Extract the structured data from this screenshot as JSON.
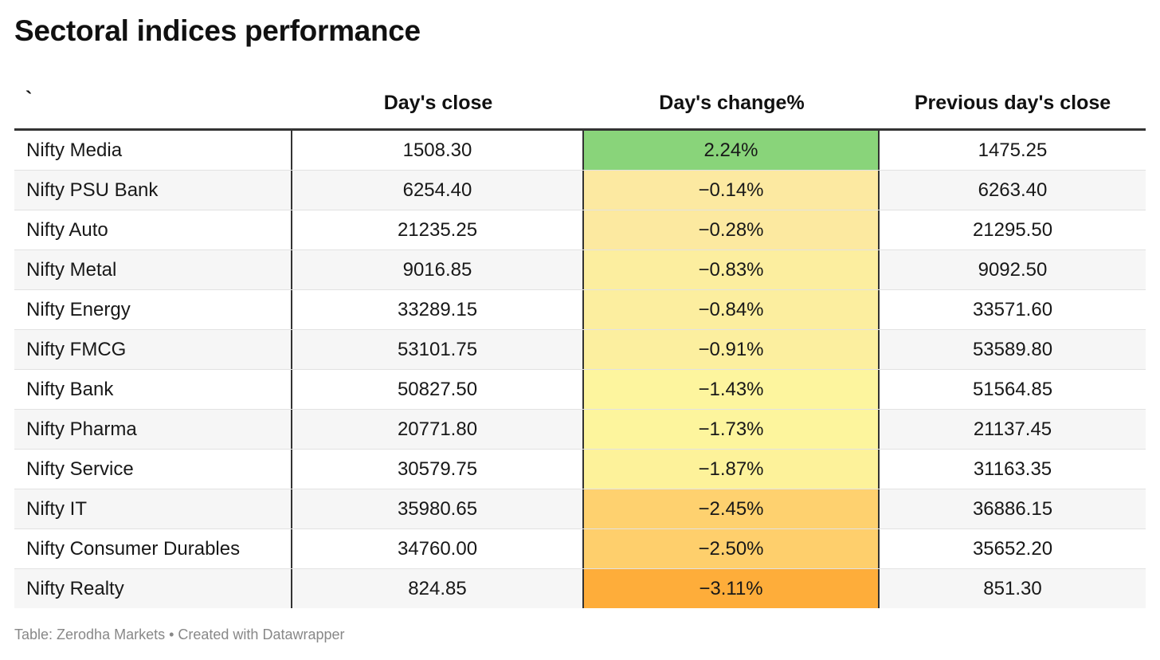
{
  "title": "Sectoral indices performance",
  "table": {
    "headers": [
      "`",
      "Day's close",
      "Day's change%",
      "Previous day's close"
    ],
    "rows": [
      {
        "name": "Nifty Media",
        "close": "1508.30",
        "change": "2.24%",
        "prev": "1475.25",
        "change_color": "#89d47a"
      },
      {
        "name": "Nifty PSU Bank",
        "close": "6254.40",
        "change": "−0.14%",
        "prev": "6263.40",
        "change_color": "#fce9a1"
      },
      {
        "name": "Nifty Auto",
        "close": "21235.25",
        "change": "−0.28%",
        "prev": "21295.50",
        "change_color": "#fce9a0"
      },
      {
        "name": "Nifty Metal",
        "close": "9016.85",
        "change": "−0.83%",
        "prev": "9092.50",
        "change_color": "#fcee9f"
      },
      {
        "name": "Nifty Energy",
        "close": "33289.15",
        "change": "−0.84%",
        "prev": "33571.60",
        "change_color": "#fcee9f"
      },
      {
        "name": "Nifty FMCG",
        "close": "53101.75",
        "change": "−0.91%",
        "prev": "53589.80",
        "change_color": "#fcef9f"
      },
      {
        "name": "Nifty Bank",
        "close": "50827.50",
        "change": "−1.43%",
        "prev": "51564.85",
        "change_color": "#fdf59e"
      },
      {
        "name": "Nifty Pharma",
        "close": "20771.80",
        "change": "−1.73%",
        "prev": "21137.45",
        "change_color": "#fdf59d"
      },
      {
        "name": "Nifty Service",
        "close": "30579.75",
        "change": "−1.87%",
        "prev": "31163.35",
        "change_color": "#fdf29a"
      },
      {
        "name": "Nifty IT",
        "close": "35980.65",
        "change": "−2.45%",
        "prev": "36886.15",
        "change_color": "#fed16f"
      },
      {
        "name": "Nifty Consumer Durables",
        "close": "34760.00",
        "change": "−2.50%",
        "prev": "35652.20",
        "change_color": "#fecf6c"
      },
      {
        "name": "Nifty Realty",
        "close": "824.85",
        "change": "−3.11%",
        "prev": "851.30",
        "change_color": "#fead3a"
      }
    ]
  },
  "footer": "Table: Zerodha Markets • Created with Datawrapper"
}
